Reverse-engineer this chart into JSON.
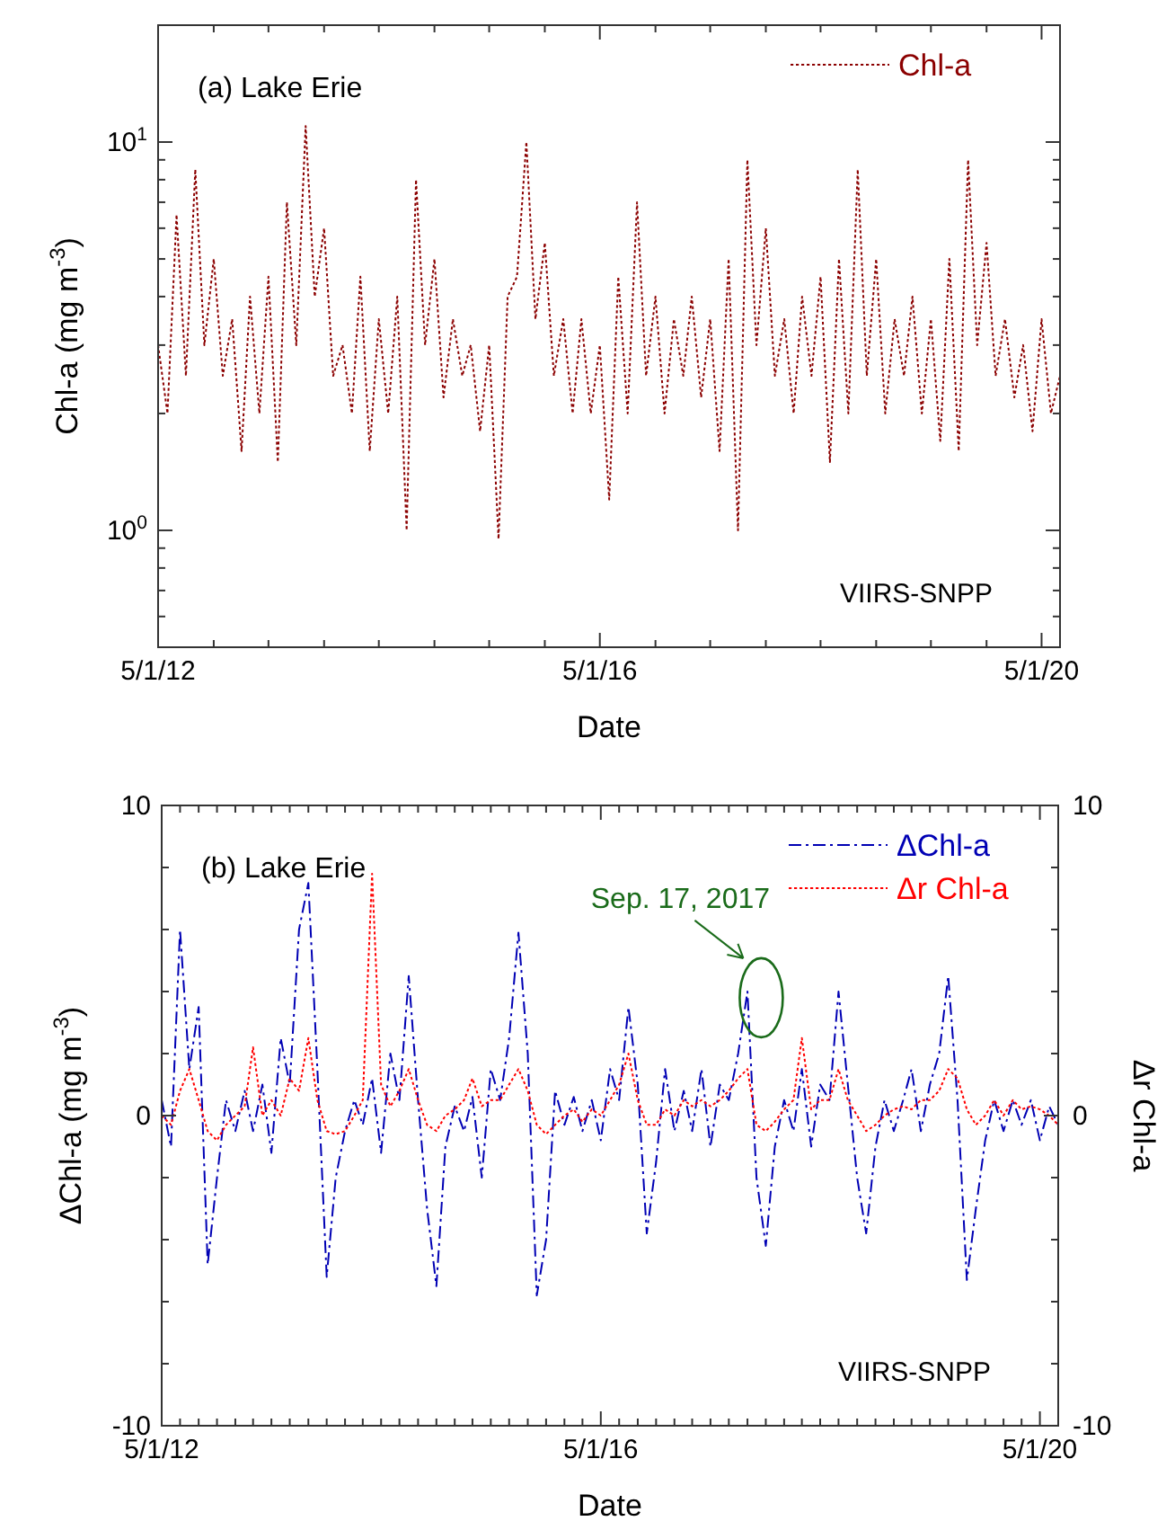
{
  "chart_data": [
    {
      "type": "line",
      "xlabel": "Date",
      "ylabel": "Chl-a (mg m$^{-3}$)",
      "log": true,
      "legend": "top right",
      "line_style": "dotted",
      "annotations": [
        "(a) Lake Erie",
        "VIIRS-SNPP"
      ],
      "xlim": [
        "2012-05-01",
        "2020-07-01"
      ],
      "xticks": [
        {
          "value": "2012-05",
          "label": "5/1/12"
        },
        {
          "value": "2012-11",
          "label": null
        },
        {
          "value": "2013-05",
          "label": null
        },
        {
          "value": "2013-11",
          "label": null
        },
        {
          "value": "2014-05",
          "label": null
        },
        {
          "value": "2014-11",
          "label": null
        },
        {
          "value": "2015-05",
          "label": null
        },
        {
          "value": "2015-11",
          "label": null
        },
        {
          "value": "2016-05",
          "label": "5/1/16"
        },
        {
          "value": "2016-11",
          "label": null
        },
        {
          "value": "2017-05",
          "label": null
        },
        {
          "value": "2017-11",
          "label": null
        },
        {
          "value": "2018-05",
          "label": null
        },
        {
          "value": "2018-11",
          "label": null
        },
        {
          "value": "2019-05",
          "label": null
        },
        {
          "value": "2019-11",
          "label": null
        },
        {
          "value": "2020-05",
          "label": "5/1/20"
        }
      ],
      "ylim": [
        0.5,
        20
      ],
      "yticks": [
        {
          "value": 0.5,
          "label": null
        },
        {
          "value": 0.6,
          "label": null
        },
        {
          "value": 0.7,
          "label": null
        },
        {
          "value": 0.8,
          "label": null
        },
        {
          "value": 0.9,
          "label": null
        },
        {
          "value": 1,
          "label": "10$^{0}$"
        },
        {
          "value": 2,
          "label": null
        },
        {
          "value": 3,
          "label": null
        },
        {
          "value": 4,
          "label": null
        },
        {
          "value": 5,
          "label": null
        },
        {
          "value": 6,
          "label": null
        },
        {
          "value": 7,
          "label": null
        },
        {
          "value": 8,
          "label": null
        },
        {
          "value": 9,
          "label": null
        },
        {
          "value": 10,
          "label": "10$^{1}$"
        },
        {
          "value": 20,
          "label": null
        }
      ],
      "x": [
        "2012-05",
        "2012-06",
        "2012-07",
        "2012-08",
        "2012-09",
        "2012-10",
        "2012-11",
        "2012-12",
        "2013-01",
        "2013-02",
        "2013-03",
        "2013-04",
        "2013-05",
        "2013-06",
        "2013-07",
        "2013-08",
        "2013-09",
        "2013-10",
        "2013-11",
        "2013-12",
        "2014-01",
        "2014-02",
        "2014-03",
        "2014-04",
        "2014-05",
        "2014-06",
        "2014-07",
        "2014-08",
        "2014-09",
        "2014-10",
        "2014-11",
        "2014-12",
        "2015-01",
        "2015-02",
        "2015-03",
        "2015-04",
        "2015-05",
        "2015-06",
        "2015-07",
        "2015-08",
        "2015-09",
        "2015-10",
        "2015-11",
        "2015-12",
        "2016-01",
        "2016-02",
        "2016-03",
        "2016-04",
        "2016-05",
        "2016-06",
        "2016-07",
        "2016-08",
        "2016-09",
        "2016-10",
        "2016-11",
        "2016-12",
        "2017-01",
        "2017-02",
        "2017-03",
        "2017-04",
        "2017-05",
        "2017-06",
        "2017-07",
        "2017-08",
        "2017-09",
        "2017-10",
        "2017-11",
        "2017-12",
        "2018-01",
        "2018-02",
        "2018-03",
        "2018-04",
        "2018-05",
        "2018-06",
        "2018-07",
        "2018-08",
        "2018-09",
        "2018-10",
        "2018-11",
        "2018-12",
        "2019-01",
        "2019-02",
        "2019-03",
        "2019-04",
        "2019-05",
        "2019-06",
        "2019-07",
        "2019-08",
        "2019-09",
        "2019-10",
        "2019-11",
        "2019-12",
        "2020-01",
        "2020-02",
        "2020-03",
        "2020-04",
        "2020-05",
        "2020-06",
        "2020-07"
      ],
      "series": [
        {
          "name": "Chl-a",
          "color": "#8b0000",
          "values": [
            3.0,
            2.0,
            6.5,
            2.5,
            8.5,
            3.0,
            5.0,
            2.5,
            3.5,
            1.6,
            4.0,
            2.0,
            4.5,
            1.5,
            7.0,
            3.0,
            11.0,
            4.0,
            6.0,
            2.5,
            3.0,
            2.0,
            4.5,
            1.6,
            3.5,
            2.0,
            4.0,
            1.0,
            8.0,
            3.0,
            5.0,
            2.2,
            3.5,
            2.5,
            3.0,
            1.8,
            3.0,
            0.95,
            4.0,
            4.5,
            10.0,
            3.5,
            5.5,
            2.5,
            3.5,
            2.0,
            3.5,
            2.0,
            3.0,
            1.2,
            4.5,
            2.0,
            7.0,
            2.5,
            4.0,
            2.0,
            3.5,
            2.5,
            4.0,
            2.2,
            3.5,
            1.6,
            5.0,
            1.0,
            9.0,
            3.0,
            6.0,
            2.5,
            3.5,
            2.0,
            4.0,
            2.5,
            4.5,
            1.5,
            5.0,
            2.0,
            8.5,
            2.5,
            5.0,
            2.0,
            3.5,
            2.5,
            4.0,
            2.0,
            3.5,
            1.7,
            5.0,
            1.6,
            9.0,
            3.0,
            5.5,
            2.5,
            3.5,
            2.2,
            3.0,
            1.8,
            3.5,
            2.0,
            2.5
          ]
        }
      ]
    },
    {
      "type": "line",
      "xlabel": "Date",
      "ylabel": "ΔChl-a (mg m$^{-3}$)",
      "y2label": "Δr Chl-a",
      "legend": "top right",
      "annotations": [
        "(b) Lake Erie",
        "VIIRS-SNPP",
        {
          "text": "Sep. 17, 2017",
          "x": "2017-09-17",
          "y": 3.8
        }
      ],
      "xlim": [
        "2012-05-01",
        "2020-07-01"
      ],
      "xticks": [
        {
          "value": "2012-05",
          "label": "5/1/12"
        },
        {
          "value": "2012-07",
          "label": null
        },
        {
          "value": "2012-09",
          "label": null
        },
        {
          "value": "2012-11",
          "label": null
        },
        {
          "value": "2013-01",
          "label": null
        },
        {
          "value": "2013-03",
          "label": null
        },
        {
          "value": "2013-05",
          "label": null
        },
        {
          "value": "2013-07",
          "label": null
        },
        {
          "value": "2013-09",
          "label": null
        },
        {
          "value": "2013-11",
          "label": null
        },
        {
          "value": "2014-01",
          "label": null
        },
        {
          "value": "2014-03",
          "label": null
        },
        {
          "value": "2014-05",
          "label": null
        },
        {
          "value": "2014-07",
          "label": null
        },
        {
          "value": "2014-09",
          "label": null
        },
        {
          "value": "2014-11",
          "label": null
        },
        {
          "value": "2015-01",
          "label": null
        },
        {
          "value": "2015-03",
          "label": null
        },
        {
          "value": "2015-05",
          "label": null
        },
        {
          "value": "2015-07",
          "label": null
        },
        {
          "value": "2015-09",
          "label": null
        },
        {
          "value": "2015-11",
          "label": null
        },
        {
          "value": "2016-01",
          "label": null
        },
        {
          "value": "2016-03",
          "label": null
        },
        {
          "value": "2016-05",
          "label": "5/1/16"
        },
        {
          "value": "2016-07",
          "label": null
        },
        {
          "value": "2016-09",
          "label": null
        },
        {
          "value": "2016-11",
          "label": null
        },
        {
          "value": "2017-01",
          "label": null
        },
        {
          "value": "2017-03",
          "label": null
        },
        {
          "value": "2017-05",
          "label": null
        },
        {
          "value": "2017-07",
          "label": null
        },
        {
          "value": "2017-09",
          "label": null
        },
        {
          "value": "2017-11",
          "label": null
        },
        {
          "value": "2018-01",
          "label": null
        },
        {
          "value": "2018-03",
          "label": null
        },
        {
          "value": "2018-05",
          "label": null
        },
        {
          "value": "2018-07",
          "label": null
        },
        {
          "value": "2018-09",
          "label": null
        },
        {
          "value": "2018-11",
          "label": null
        },
        {
          "value": "2019-01",
          "label": null
        },
        {
          "value": "2019-03",
          "label": null
        },
        {
          "value": "2019-05",
          "label": null
        },
        {
          "value": "2019-07",
          "label": null
        },
        {
          "value": "2019-09",
          "label": null
        },
        {
          "value": "2019-11",
          "label": null
        },
        {
          "value": "2020-01",
          "label": null
        },
        {
          "value": "2020-03",
          "label": null
        },
        {
          "value": "2020-05",
          "label": "5/1/20"
        }
      ],
      "ylim": [
        -10,
        10
      ],
      "yticks": [
        -10,
        {
          "value": -8,
          "label": null
        },
        {
          "value": -6,
          "label": null
        },
        {
          "value": -4,
          "label": null
        },
        {
          "value": -2,
          "label": null
        },
        0,
        {
          "value": 2,
          "label": null
        },
        {
          "value": 4,
          "label": null
        },
        {
          "value": 6,
          "label": null
        },
        {
          "value": 8,
          "label": null
        },
        10
      ],
      "y2lim": [
        -10,
        10
      ],
      "y2ticks": [
        -10,
        {
          "value": -8,
          "label": null
        },
        {
          "value": -6,
          "label": null
        },
        {
          "value": -4,
          "label": null
        },
        {
          "value": -2,
          "label": null
        },
        0,
        {
          "value": 2,
          "label": null
        },
        {
          "value": 4,
          "label": null
        },
        {
          "value": 6,
          "label": null
        },
        {
          "value": 8,
          "label": null
        },
        10
      ],
      "x": [
        "2012-05",
        "2012-06",
        "2012-07",
        "2012-08",
        "2012-09",
        "2012-10",
        "2012-11",
        "2012-12",
        "2013-01",
        "2013-02",
        "2013-03",
        "2013-04",
        "2013-05",
        "2013-06",
        "2013-07",
        "2013-08",
        "2013-09",
        "2013-10",
        "2013-11",
        "2013-12",
        "2014-01",
        "2014-02",
        "2014-03",
        "2014-04",
        "2014-05",
        "2014-06",
        "2014-07",
        "2014-08",
        "2014-09",
        "2014-10",
        "2014-11",
        "2014-12",
        "2015-01",
        "2015-02",
        "2015-03",
        "2015-04",
        "2015-05",
        "2015-06",
        "2015-07",
        "2015-08",
        "2015-09",
        "2015-10",
        "2015-11",
        "2015-12",
        "2016-01",
        "2016-02",
        "2016-03",
        "2016-04",
        "2016-05",
        "2016-06",
        "2016-07",
        "2016-08",
        "2016-09",
        "2016-10",
        "2016-11",
        "2016-12",
        "2017-01",
        "2017-02",
        "2017-03",
        "2017-04",
        "2017-05",
        "2017-06",
        "2017-07",
        "2017-08",
        "2017-09",
        "2017-10",
        "2017-11",
        "2017-12",
        "2018-01",
        "2018-02",
        "2018-03",
        "2018-04",
        "2018-05",
        "2018-06",
        "2018-07",
        "2018-08",
        "2018-09",
        "2018-10",
        "2018-11",
        "2018-12",
        "2019-01",
        "2019-02",
        "2019-03",
        "2019-04",
        "2019-05",
        "2019-06",
        "2019-07",
        "2019-08",
        "2019-09",
        "2019-10",
        "2019-11",
        "2019-12",
        "2020-01",
        "2020-02",
        "2020-03",
        "2020-04",
        "2020-05",
        "2020-06",
        "2020-07"
      ],
      "series": [
        {
          "name": "ΔChl-a",
          "color": "#0000b4",
          "line_style": "dashed",
          "values": [
            0.5,
            -1,
            6.0,
            1.5,
            3.5,
            -4.8,
            -2,
            0.5,
            -0.5,
            0.8,
            -0.5,
            1,
            -1.2,
            2.5,
            1,
            6,
            7.5,
            1.5,
            -5.2,
            -2,
            -0.5,
            0.5,
            -0.3,
            1.2,
            -1.2,
            2,
            0.5,
            4.5,
            0.5,
            -3,
            -5.5,
            -1,
            0.3,
            -0.5,
            0.6,
            -2,
            1.5,
            0.5,
            2.5,
            5.9,
            2,
            -5.8,
            -4,
            0.8,
            -0.3,
            0.6,
            -0.5,
            0.5,
            -0.8,
            1.5,
            0.5,
            3.5,
            1,
            -3.8,
            -1.5,
            1.5,
            -0.5,
            0.8,
            -0.5,
            1.5,
            -1,
            1,
            0.5,
            2,
            4,
            -2,
            -4.2,
            -1,
            0.5,
            -0.5,
            1.5,
            -1,
            1,
            0.5,
            4,
            1,
            -2,
            -3.8,
            -1,
            0.5,
            -0.5,
            0.5,
            1.5,
            -0.5,
            1,
            2,
            4.5,
            0.5,
            -5.3,
            -3,
            -0.8,
            0.5,
            -0.5,
            0.5,
            -0.3,
            0.5,
            -0.8,
            0.3,
            -0.3
          ]
        },
        {
          "name": "Δr Chl-a",
          "color": "#ff0000",
          "line_style": "dotted",
          "values": [
            0,
            -0.3,
            0.8,
            1.5,
            0.5,
            -0.5,
            -0.8,
            -0.3,
            0,
            0.3,
            2.2,
            0,
            0.5,
            0,
            1.2,
            0.8,
            2.5,
            0.5,
            -0.5,
            -0.6,
            -0.5,
            0,
            0.5,
            7.8,
            1.0,
            0.3,
            0.8,
            1.5,
            0.5,
            -0.3,
            -0.5,
            0,
            0.2,
            0.5,
            1.2,
            0.3,
            0.5,
            0.5,
            1,
            1.5,
            0.8,
            -0.3,
            -0.6,
            -0.3,
            0,
            0.2,
            -0.2,
            0.2,
            0,
            0.5,
            1,
            2,
            0.5,
            -0.3,
            -0.3,
            0.2,
            0,
            0.5,
            0.3,
            0.5,
            0.3,
            0.5,
            0.8,
            1.2,
            1.5,
            -0.3,
            -0.5,
            -0.2,
            0.2,
            0.5,
            2.5,
            0.2,
            0.5,
            0.5,
            1.5,
            0.5,
            0,
            -0.5,
            -0.3,
            0,
            0.2,
            0.3,
            0.2,
            0.5,
            0.5,
            0.8,
            1.5,
            1.2,
            0.2,
            -0.3,
            0,
            0.5,
            0,
            0.5,
            0.2,
            0.3,
            0.2,
            0,
            -0.3
          ]
        }
      ]
    }
  ]
}
